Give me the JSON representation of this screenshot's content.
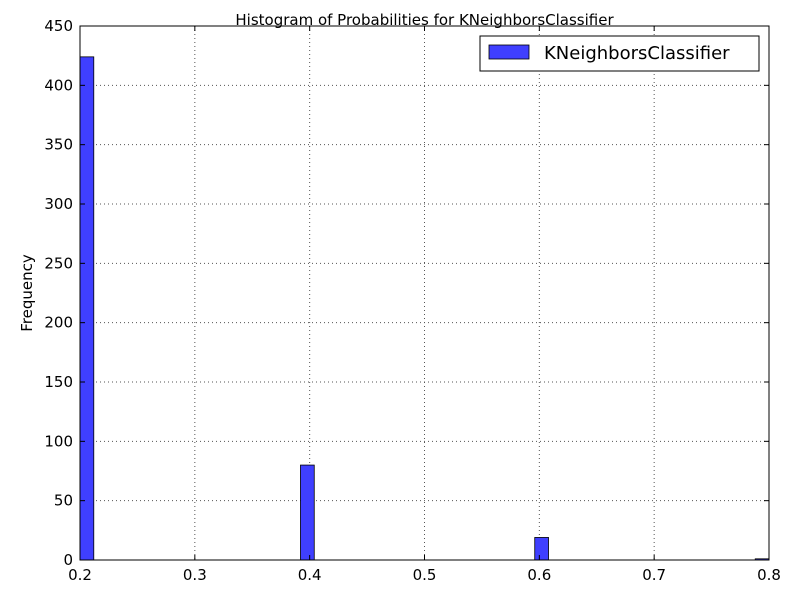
{
  "chart_data": {
    "type": "bar",
    "title": "Histogram of Probabilities for KNeighborsClassifier",
    "xlabel": "",
    "ylabel": "Frequency",
    "xlim": [
      0.2,
      0.8
    ],
    "ylim": [
      0,
      450
    ],
    "xticks": [
      "0.2",
      "0.3",
      "0.4",
      "0.5",
      "0.6",
      "0.7",
      "0.8"
    ],
    "yticks": [
      "0",
      "50",
      "100",
      "150",
      "200",
      "250",
      "300",
      "350",
      "400",
      "450"
    ],
    "grid": true,
    "legend": {
      "position": "top-right"
    },
    "series": [
      {
        "name": "KNeighborsClassifier",
        "color": "#3f3fff",
        "bins": [
          {
            "x0": 0.2,
            "x1": 0.212,
            "count": 424
          },
          {
            "x0": 0.392,
            "x1": 0.404,
            "count": 80
          },
          {
            "x0": 0.596,
            "x1": 0.608,
            "count": 19
          },
          {
            "x0": 0.788,
            "x1": 0.8,
            "count": 1
          }
        ]
      }
    ]
  }
}
